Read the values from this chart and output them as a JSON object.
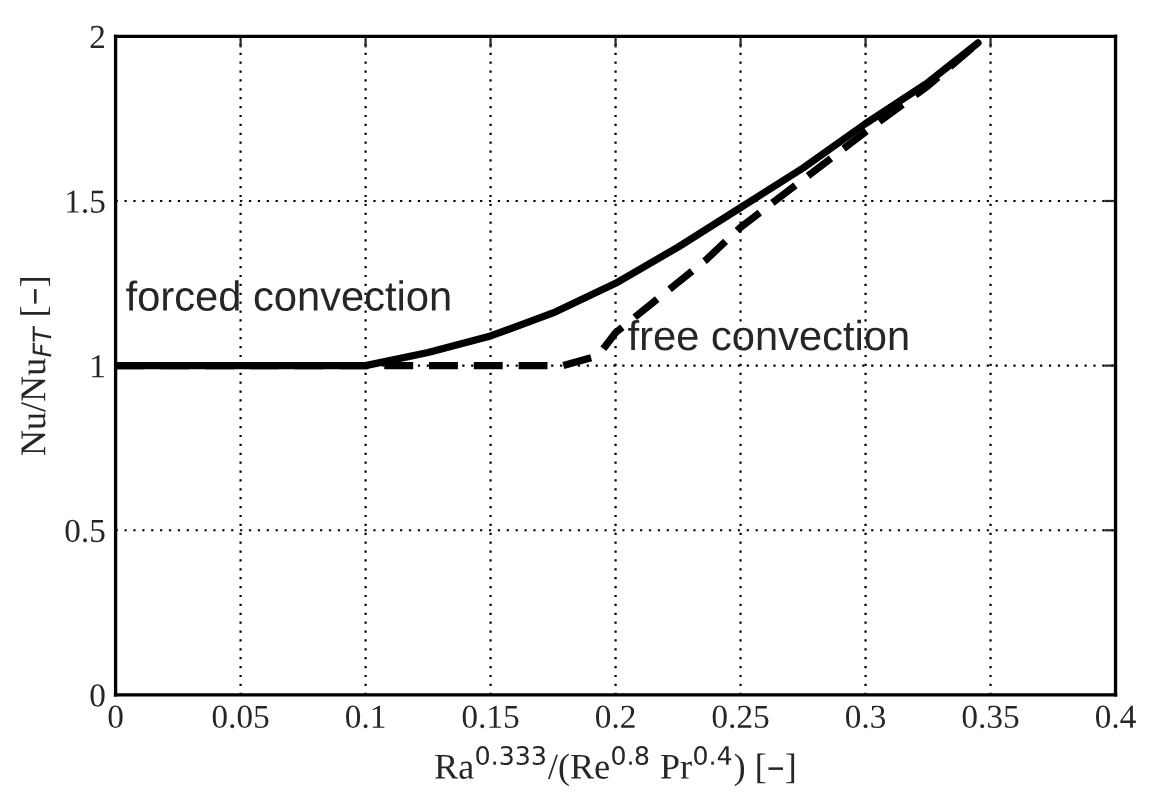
{
  "chart_data": {
    "type": "line",
    "xlabel": "Ra$^{0.333}$/(Re$^{0.8}$ Pr$^{0.4}$) [–]",
    "ylabel": "Nu/Nu$_{FT}$ [–]",
    "series": [
      {
        "color": "#000000",
        "line_style": "solid",
        "x": [
          0,
          0.05,
          0.1,
          0.125,
          0.15,
          0.175,
          0.2,
          0.225,
          0.25,
          0.275,
          0.3,
          0.325,
          0.345
        ],
        "values": [
          1,
          1,
          1,
          1.04,
          1.09,
          1.16,
          1.25,
          1.36,
          1.48,
          1.6,
          1.735,
          1.86,
          1.98
        ]
      },
      {
        "color": "#000000",
        "line_style": "dashed",
        "x": [
          0,
          0.05,
          0.1,
          0.15,
          0.179,
          0.193,
          0.2,
          0.236,
          0.25,
          0.3,
          0.325,
          0.345
        ],
        "values": [
          1,
          1,
          1,
          1,
          1,
          1.03,
          1.1,
          1.32,
          1.42,
          1.71,
          1.85,
          1.98
        ]
      }
    ],
    "annotations": [
      "forced convection",
      "free convection"
    ],
    "xlim": [
      0,
      0.4
    ],
    "ylim": [
      0,
      2
    ],
    "xticks": [
      0,
      0.05,
      0.1,
      0.15,
      0.2,
      0.25,
      0.3,
      0.35,
      0.4
    ],
    "yticks": [
      0,
      0.5,
      1,
      1.5,
      2
    ],
    "grid": true,
    "legend": false,
    "marker": "none"
  }
}
